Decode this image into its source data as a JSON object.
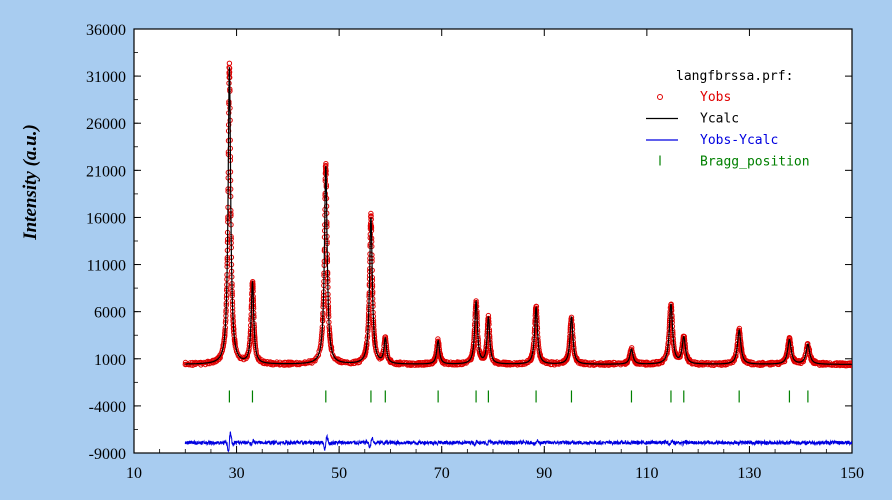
{
  "chart_data": {
    "type": "line",
    "title": "",
    "xlabel": "",
    "ylabel": "Intensity (a.u.)",
    "xlim": [
      10,
      150
    ],
    "ylim": [
      -9000,
      36000
    ],
    "x_ticks": [
      10,
      30,
      50,
      70,
      90,
      110,
      130,
      150
    ],
    "y_ticks": [
      -9000,
      -4000,
      1000,
      6000,
      11000,
      16000,
      21000,
      26000,
      31000,
      36000
    ],
    "grid": false,
    "legend_title": "langfbrssa.prf:",
    "legend_position": "top-right",
    "x_range": [
      20,
      150
    ],
    "background": 400,
    "peaks": [
      {
        "x": 28.6,
        "height": 31500,
        "width": 0.3
      },
      {
        "x": 33.1,
        "height": 8600,
        "width": 0.3
      },
      {
        "x": 47.4,
        "height": 21000,
        "width": 0.32
      },
      {
        "x": 56.2,
        "height": 15500,
        "width": 0.32
      },
      {
        "x": 59.0,
        "height": 2600,
        "width": 0.3
      },
      {
        "x": 69.3,
        "height": 2500,
        "width": 0.32
      },
      {
        "x": 76.7,
        "height": 6600,
        "width": 0.32
      },
      {
        "x": 79.1,
        "height": 4900,
        "width": 0.3
      },
      {
        "x": 88.4,
        "height": 6000,
        "width": 0.34
      },
      {
        "x": 95.3,
        "height": 5000,
        "width": 0.34
      },
      {
        "x": 107.0,
        "height": 1600,
        "width": 0.36
      },
      {
        "x": 114.7,
        "height": 6300,
        "width": 0.38
      },
      {
        "x": 117.2,
        "height": 2800,
        "width": 0.38
      },
      {
        "x": 128.0,
        "height": 3600,
        "width": 0.4
      },
      {
        "x": 137.8,
        "height": 2600,
        "width": 0.42
      },
      {
        "x": 141.4,
        "height": 2100,
        "width": 0.42
      }
    ],
    "bragg_positions": [
      28.6,
      33.1,
      47.4,
      56.2,
      59.0,
      69.3,
      76.7,
      79.1,
      88.4,
      95.3,
      107.0,
      114.7,
      117.2,
      128.0,
      137.8,
      141.4
    ],
    "bragg_y": -3000,
    "difference_offset": -7900,
    "series": [
      {
        "name": "Yobs",
        "color": "#e00000",
        "style": "markers"
      },
      {
        "name": "Ycalc",
        "color": "#000000",
        "style": "line"
      },
      {
        "name": "Yobs-Ycalc",
        "color": "#0000e0",
        "style": "line"
      },
      {
        "name": "Bragg_position",
        "color": "#008000",
        "style": "ticks"
      }
    ]
  }
}
